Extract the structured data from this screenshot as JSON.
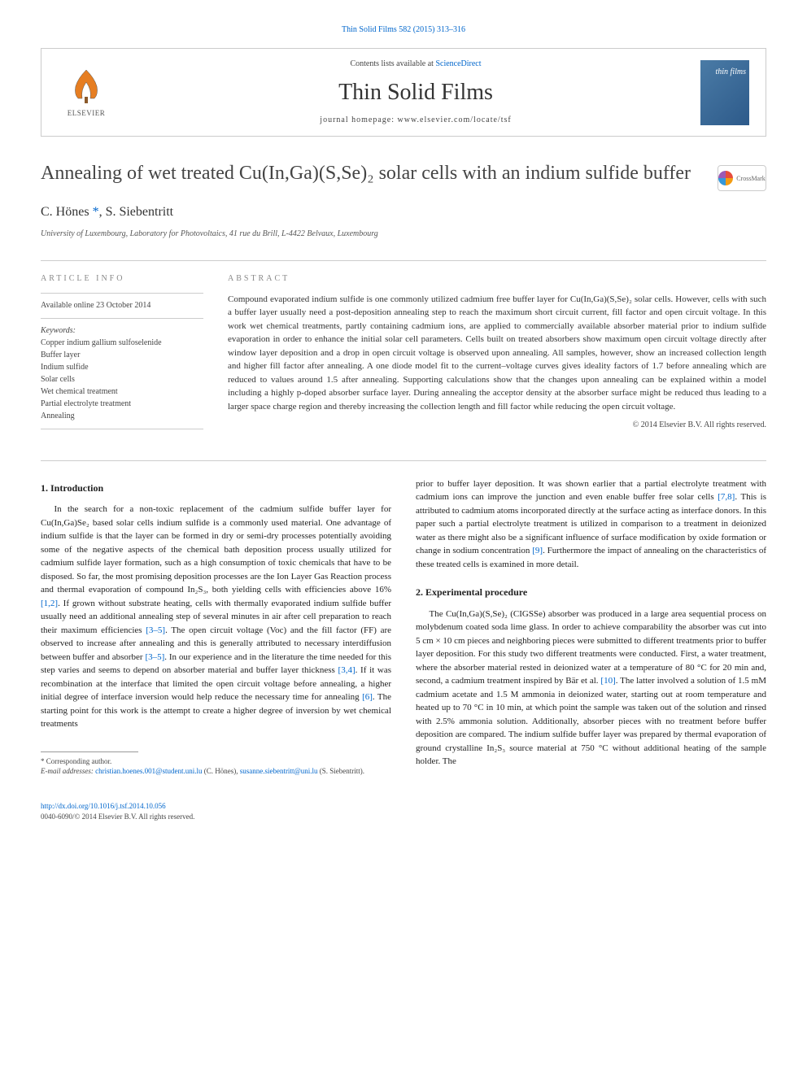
{
  "top_link": "Thin Solid Films 582 (2015) 313–316",
  "header": {
    "contents_prefix": "Contents lists available at ",
    "contents_link": "ScienceDirect",
    "journal_name": "Thin Solid Films",
    "homepage": "journal homepage: www.elsevier.com/locate/tsf",
    "publisher": "ELSEVIER",
    "cover_text": "thin films"
  },
  "crossmark": "CrossMark",
  "title": "Annealing of wet treated Cu(In,Ga)(S,Se)₂ solar cells with an indium sulfide buffer",
  "authors": "C. Hönes *, S. Siebentritt",
  "affiliation": "University of Luxembourg, Laboratory for Photovoltaics, 41 rue du Brill, L-4422 Belvaux, Luxembourg",
  "article_info": {
    "heading": "ARTICLE INFO",
    "available": "Available online 23 October 2014",
    "keywords_label": "Keywords:",
    "keywords": [
      "Copper indium gallium sulfoselenide",
      "Buffer layer",
      "Indium sulfide",
      "Solar cells",
      "Wet chemical treatment",
      "Partial electrolyte treatment",
      "Annealing"
    ]
  },
  "abstract": {
    "heading": "ABSTRACT",
    "text": "Compound evaporated indium sulfide is one commonly utilized cadmium free buffer layer for Cu(In,Ga)(S,Se)₂ solar cells. However, cells with such a buffer layer usually need a post-deposition annealing step to reach the maximum short circuit current, fill factor and open circuit voltage. In this work wet chemical treatments, partly containing cadmium ions, are applied to commercially available absorber material prior to indium sulfide evaporation in order to enhance the initial solar cell parameters. Cells built on treated absorbers show maximum open circuit voltage directly after window layer deposition and a drop in open circuit voltage is observed upon annealing. All samples, however, show an increased collection length and higher fill factor after annealing. A one diode model fit to the current–voltage curves gives ideality factors of 1.7 before annealing which are reduced to values around 1.5 after annealing. Supporting calculations show that the changes upon annealing can be explained within a model including a highly p-doped absorber surface layer. During annealing the acceptor density at the absorber surface might be reduced thus leading to a larger space charge region and thereby increasing the collection length and fill factor while reducing the open circuit voltage.",
    "copyright": "© 2014 Elsevier B.V. All rights reserved."
  },
  "sections": {
    "intro_heading": "1. Introduction",
    "intro_p1a": "In the search for a non-toxic replacement of the cadmium sulfide buffer layer for Cu(In,Ga)Se₂ based solar cells indium sulfide is a commonly used material. One advantage of indium sulfide is that the layer can be formed in dry or semi-dry processes potentially avoiding some of the negative aspects of the chemical bath deposition process usually utilized for cadmium sulfide layer formation, such as a high consumption of toxic chemicals that have to be disposed. So far, the most promising deposition processes are the Ion Layer Gas Reaction process and thermal evaporation of compound In₂S₃, both yielding cells with efficiencies above 16% ",
    "intro_ref1": "[1,2]",
    "intro_p1b": ". If grown without substrate heating, cells with thermally evaporated indium sulfide buffer usually need an additional annealing step of several minutes in air after cell preparation to reach their maximum efficiencies ",
    "intro_ref2": "[3–5]",
    "intro_p1c": ". The open circuit voltage (Voc) and the fill factor (FF) are observed to increase after annealing and this is generally attributed to necessary interdiffusion between buffer and absorber ",
    "intro_ref3": "[3–5]",
    "intro_p1d": ". In our experience and in the literature the time needed for this step varies and seems to depend on absorber material and buffer layer thickness ",
    "intro_ref4": "[3,4]",
    "intro_p1e": ". If it was recombination at the interface that limited the open circuit voltage before annealing, a higher initial degree of interface inversion would help reduce the necessary time for annealing ",
    "intro_ref5": "[6]",
    "intro_p1f": ". The starting point for this work is the attempt to create a higher degree of inversion by wet chemical treatments",
    "intro_p2a": "prior to buffer layer deposition. It was shown earlier that a partial electrolyte treatment with cadmium ions can improve the junction and even enable buffer free solar cells ",
    "intro_ref6": "[7,8]",
    "intro_p2b": ". This is attributed to cadmium atoms incorporated directly at the surface acting as interface donors. In this paper such a partial electrolyte treatment is utilized in comparison to a treatment in deionized water as there might also be a significant influence of surface modification by oxide formation or change in sodium concentration ",
    "intro_ref7": "[9]",
    "intro_p2c": ". Furthermore the impact of annealing on the characteristics of these treated cells is examined in more detail.",
    "exp_heading": "2. Experimental procedure",
    "exp_p1a": "The Cu(In,Ga)(S,Se)₂ (CIGSSe) absorber was produced in a large area sequential process on molybdenum coated soda lime glass. In order to achieve comparability the absorber was cut into 5 cm × 10 cm pieces and neighboring pieces were submitted to different treatments prior to buffer layer deposition. For this study two different treatments were conducted. First, a water treatment, where the absorber material rested in deionized water at a temperature of 80 °C for 20 min and, second, a cadmium treatment inspired by Bär et al. ",
    "exp_ref1": "[10]",
    "exp_p1b": ". The latter involved a solution of 1.5 mM cadmium acetate and 1.5 M ammonia in deionized water, starting out at room temperature and heated up to 70 °C in 10 min, at which point the sample was taken out of the solution and rinsed with 2.5% ammonia solution. Additionally, absorber pieces with no treatment before buffer deposition are compared. The indium sulfide buffer layer was prepared by thermal evaporation of ground crystalline In₂S₃ source material at 750 °C without additional heating of the sample holder. The"
  },
  "footnote": {
    "corresp": "* Corresponding author.",
    "email_label": "E-mail addresses: ",
    "email1": "christian.hoenes.001@student.uni.lu",
    "name1": " (C. Hönes), ",
    "email2": "susanne.siebentritt@uni.lu",
    "name2": " (S. Siebentritt)."
  },
  "bottom": {
    "doi": "http://dx.doi.org/10.1016/j.tsf.2014.10.056",
    "issn": "0040-6090/© 2014 Elsevier B.V. All rights reserved."
  }
}
